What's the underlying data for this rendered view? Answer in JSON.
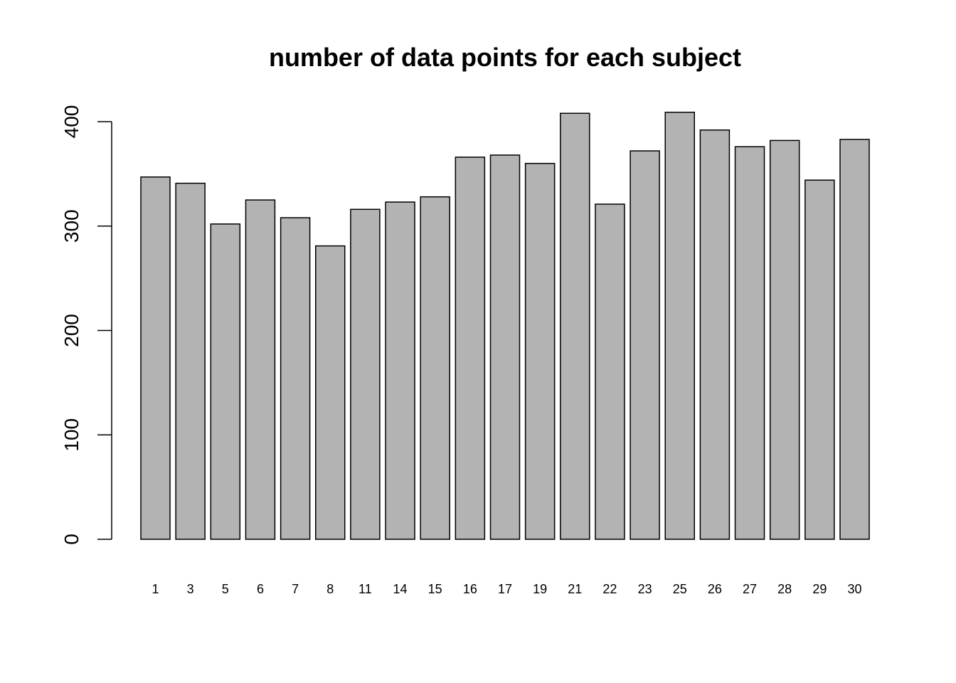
{
  "chart_data": {
    "type": "bar",
    "title": "number of data points for each subject",
    "xlabel": "",
    "ylabel": "",
    "categories": [
      "1",
      "3",
      "5",
      "6",
      "7",
      "8",
      "11",
      "14",
      "15",
      "16",
      "17",
      "19",
      "21",
      "22",
      "23",
      "25",
      "26",
      "27",
      "28",
      "29",
      "30"
    ],
    "values": [
      347,
      341,
      302,
      325,
      308,
      281,
      316,
      323,
      328,
      366,
      368,
      360,
      408,
      321,
      372,
      409,
      392,
      376,
      382,
      344,
      383
    ],
    "ylim": [
      0,
      400
    ],
    "yticks": [
      0,
      100,
      200,
      300,
      400
    ],
    "ytick_labels": [
      "0",
      "100",
      "200",
      "300",
      "400"
    ],
    "bar_color": "#b3b3b3",
    "bar_edge_color": "#000000",
    "grid": false,
    "legend": "none"
  }
}
